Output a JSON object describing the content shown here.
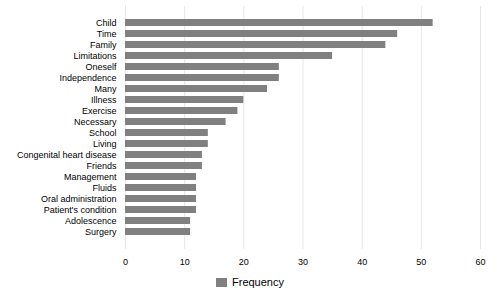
{
  "chart_data": {
    "type": "bar",
    "orientation": "horizontal",
    "categories": [
      "Child",
      "Time",
      "Family",
      "Limitations",
      "Oneself",
      "Independence",
      "Many",
      "Illness",
      "Exercise",
      "Necessary",
      "School",
      "Living",
      "Congenital heart disease",
      "Friends",
      "Management",
      "Fluids",
      "Oral administration",
      "Patient's condition",
      "Adolescence",
      "Surgery"
    ],
    "series": [
      {
        "name": "Frequency",
        "color": "#808080",
        "values": [
          52,
          46,
          44,
          35,
          26,
          26,
          24,
          20,
          19,
          17,
          14,
          14,
          13,
          13,
          12,
          12,
          12,
          12,
          11,
          11
        ]
      }
    ],
    "xlim": [
      0,
      60
    ],
    "xticks": [
      0,
      10,
      20,
      30,
      40,
      50,
      60
    ],
    "grid": true,
    "legend": "bottom"
  }
}
